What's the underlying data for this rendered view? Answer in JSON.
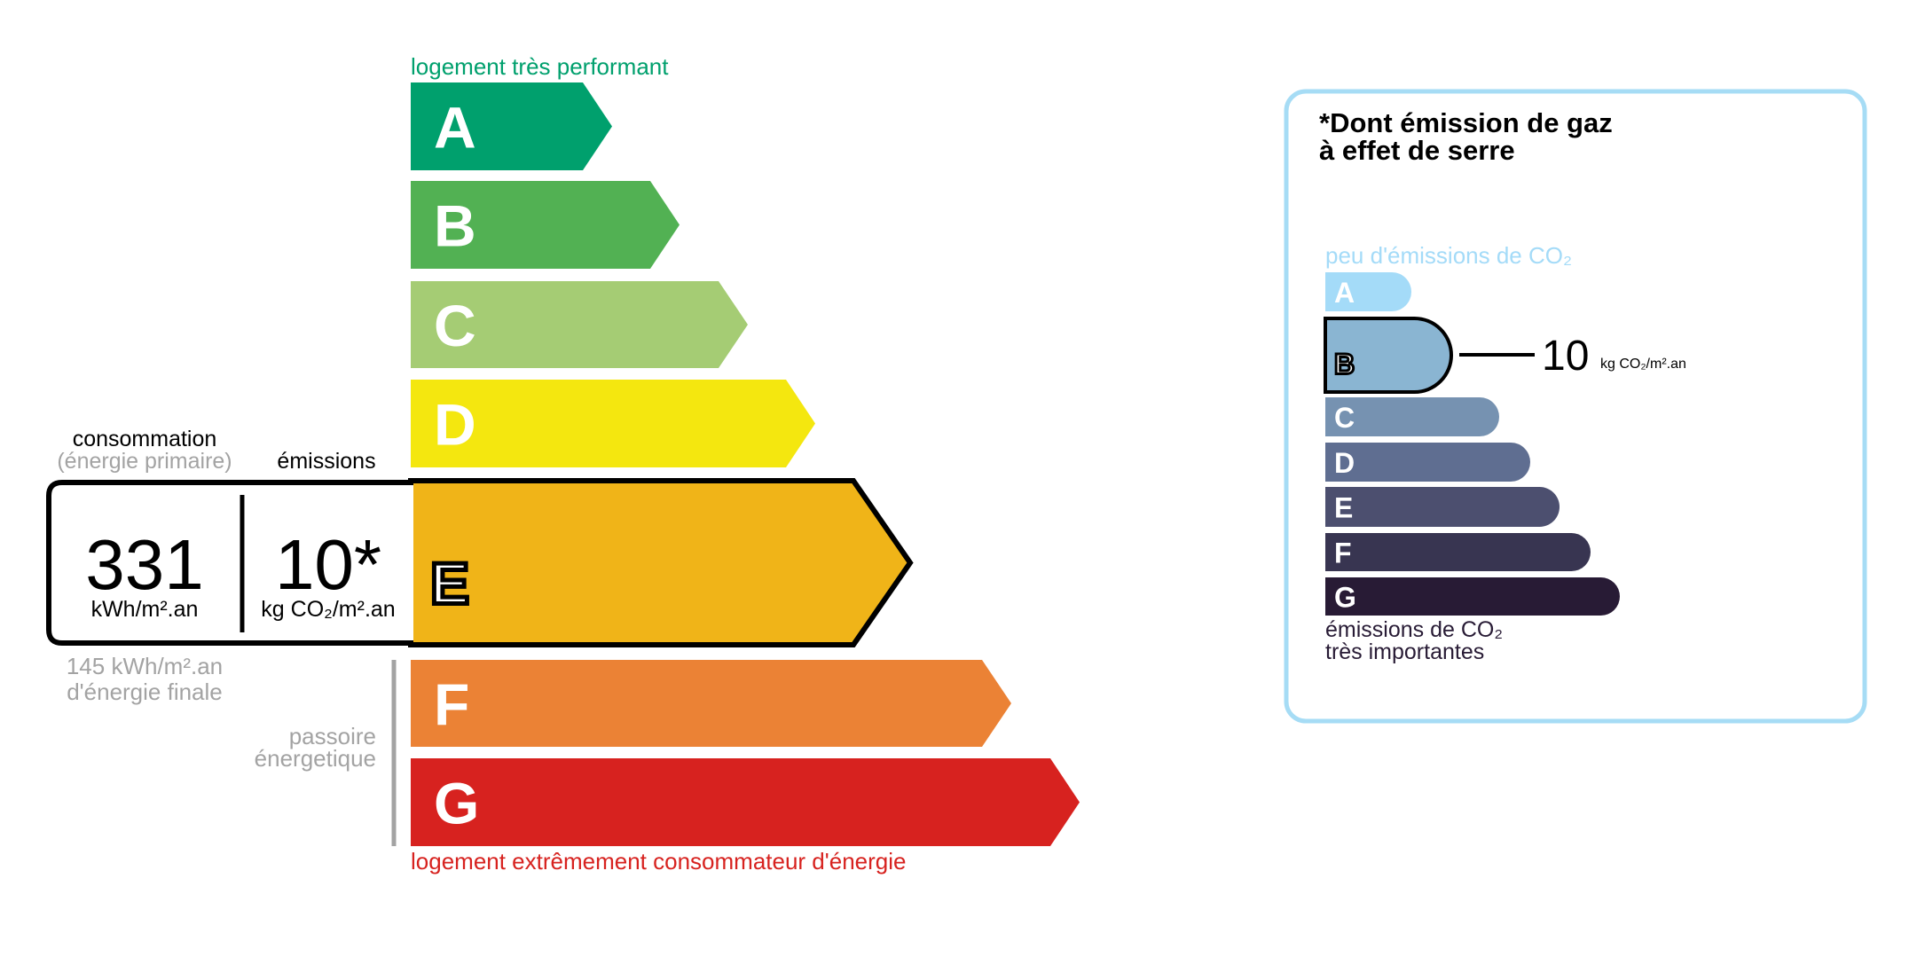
{
  "energy": {
    "top_label": "logement très performant",
    "bottom_label": "logement extrêmement consommateur d'énergie",
    "top_label_color": "#00a06d",
    "bottom_label_color": "#d7221f",
    "classes": [
      {
        "letter": "A",
        "color": "#00a06d"
      },
      {
        "letter": "B",
        "color": "#52b153"
      },
      {
        "letter": "C",
        "color": "#a5cc74"
      },
      {
        "letter": "D",
        "color": "#f4e70f"
      },
      {
        "letter": "E",
        "color": "#f0b418"
      },
      {
        "letter": "F",
        "color": "#eb8235"
      },
      {
        "letter": "G",
        "color": "#d7221f"
      }
    ],
    "current_class": "E",
    "consumption_header": "consommation",
    "consumption_subheader": "(énergie primaire)",
    "emissions_header": "émissions",
    "consumption_value": "331",
    "consumption_unit": "kWh/m².an",
    "emissions_value": "10*",
    "emissions_unit": "kg CO₂/m².an",
    "final_energy_line1": "145 kWh/m².an",
    "final_energy_line2": "d'énergie finale",
    "passoire_line1": "passoire",
    "passoire_line2": "énergetique"
  },
  "ges": {
    "title_line1": "*Dont émission de gaz",
    "title_line2": "à effet de serre",
    "top_label": "peu d'émissions de CO₂",
    "bottom_label_line1": "émissions de CO₂",
    "bottom_label_line2": "très importantes",
    "border_color": "#a6dcf5",
    "classes": [
      {
        "letter": "A",
        "color": "#a4dbf8"
      },
      {
        "letter": "B",
        "color": "#8ab5d2"
      },
      {
        "letter": "C",
        "color": "#7692b1"
      },
      {
        "letter": "D",
        "color": "#5f6e91"
      },
      {
        "letter": "E",
        "color": "#4c4f6f"
      },
      {
        "letter": "F",
        "color": "#383551"
      },
      {
        "letter": "G",
        "color": "#281b35"
      }
    ],
    "current_class": "B",
    "value": "10",
    "unit": "kg CO₂/m².an"
  }
}
